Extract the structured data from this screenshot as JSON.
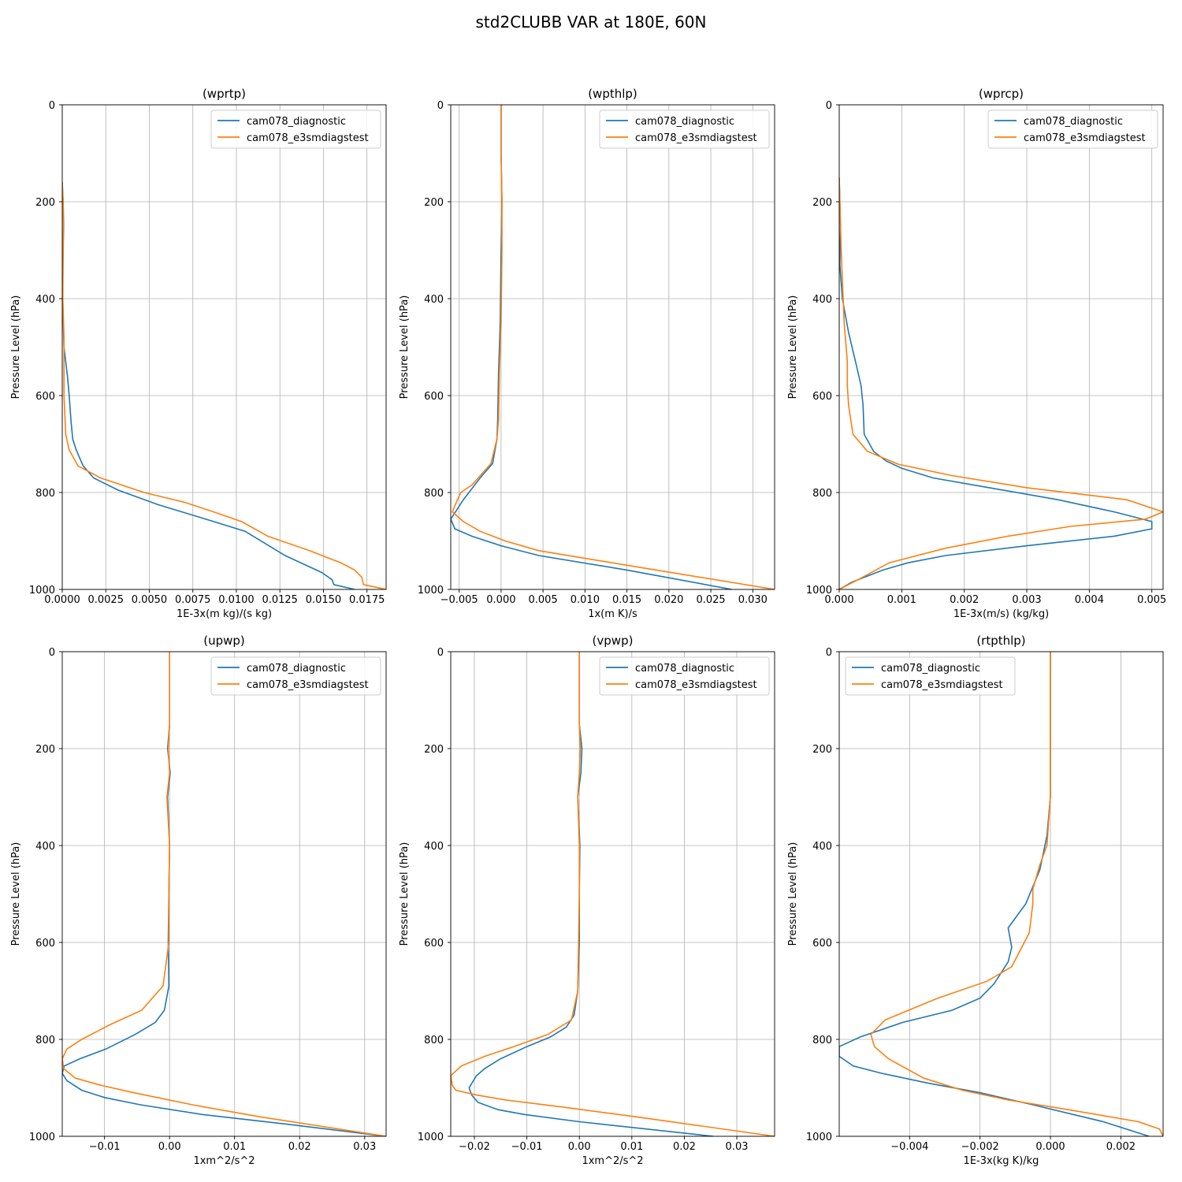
{
  "figure": {
    "title": "std2CLUBB VAR at 180E, 60N"
  },
  "colors": {
    "diagnostic": "#1f77b4",
    "e3smdiagstest": "#ff7f0e",
    "grid": "#b0b0b0"
  },
  "chart_data": [
    {
      "type": "line",
      "title": "(wprtp)",
      "xlabel": "1E-3x(m kg)/(s kg)",
      "ylabel": "Pressure Level (hPa)",
      "xlim": [
        0,
        0.0186
      ],
      "ylim": [
        1000,
        0
      ],
      "xticks": [
        0,
        0.0025,
        0.005,
        0.0075,
        0.01,
        0.0125,
        0.015,
        0.0175
      ],
      "xtick_labels": [
        "0.0000",
        "0.0025",
        "0.0050",
        "0.0075",
        "0.0100",
        "0.0125",
        "0.0150",
        "0.0175"
      ],
      "yticks": [
        0,
        200,
        400,
        600,
        800,
        1000
      ],
      "ytick_labels": [
        "0",
        "200",
        "400",
        "600",
        "800",
        "1000"
      ],
      "grid": true,
      "legend_position": "top-right",
      "series": [
        {
          "name": "cam078_diagnostic",
          "x": [
            0,
            5e-05,
            8e-05,
            5e-05,
            2e-05,
            0.0001,
            0.0003,
            0.0004,
            0.0005,
            0.0006,
            0.0008,
            0.0012,
            0.0018,
            0.0032,
            0.0055,
            0.0087,
            0.0105,
            0.0128,
            0.0149,
            0.0155,
            0.0156,
            0.0168
          ],
          "y": [
            160,
            200,
            250,
            300,
            400,
            500,
            560,
            600,
            650,
            690,
            712,
            745,
            770,
            795,
            825,
            860,
            880,
            930,
            965,
            980,
            990,
            1000
          ]
        },
        {
          "name": "cam078_e3smdiagstest",
          "x": [
            0,
            5e-05,
            7e-05,
            5e-05,
            3e-05,
            0.0001,
            0.0001,
            0.0002,
            0.0004,
            0.0009,
            0.0022,
            0.0047,
            0.007,
            0.0087,
            0.0103,
            0.0118,
            0.0142,
            0.016,
            0.0168,
            0.0172,
            0.0173,
            0.0186
          ],
          "y": [
            160,
            200,
            250,
            300,
            400,
            480,
            600,
            680,
            712,
            745,
            770,
            800,
            820,
            840,
            860,
            890,
            920,
            945,
            960,
            975,
            990,
            1000
          ]
        }
      ]
    },
    {
      "type": "line",
      "title": "(wpthlp)",
      "xlabel": "1x(m K)/s",
      "ylabel": "Pressure Level (hPa)",
      "xlim": [
        -0.006,
        0.0326
      ],
      "ylim": [
        1000,
        0
      ],
      "xticks": [
        -0.005,
        0,
        0.005,
        0.01,
        0.015,
        0.02,
        0.025,
        0.03
      ],
      "xtick_labels": [
        "−0.005",
        "0.000",
        "0.005",
        "0.010",
        "0.015",
        "0.020",
        "0.025",
        "0.030"
      ],
      "yticks": [
        0,
        200,
        400,
        600,
        800,
        1000
      ],
      "ytick_labels": [
        "0",
        "200",
        "400",
        "600",
        "800",
        "1000"
      ],
      "grid": true,
      "legend_position": "top-right",
      "series": [
        {
          "name": "cam078_diagnostic",
          "x": [
            0,
            0,
            0.0001,
            0,
            -0.0001,
            -0.0003,
            -0.0004,
            -0.0005,
            -0.001,
            -0.0025,
            -0.0045,
            -0.006,
            -0.0055,
            -0.0035,
            0,
            0.0045,
            0.015,
            0.0275
          ],
          "y": [
            0,
            100,
            200,
            300,
            450,
            550,
            650,
            690,
            740,
            770,
            815,
            855,
            875,
            890,
            910,
            930,
            960,
            1000
          ]
        },
        {
          "name": "cam078_e3smdiagstest",
          "x": [
            0,
            0,
            0.0001,
            0.0001,
            0,
            -0.0002,
            -0.0003,
            -0.0005,
            -0.0012,
            -0.0035,
            -0.0048,
            -0.0052,
            -0.0058,
            -0.0045,
            -0.0025,
            0.0005,
            0.0045,
            0.015,
            0.0326
          ],
          "y": [
            0,
            100,
            200,
            300,
            450,
            550,
            650,
            690,
            740,
            785,
            800,
            815,
            840,
            860,
            880,
            900,
            920,
            950,
            1000
          ]
        }
      ]
    },
    {
      "type": "line",
      "title": "(wprcp)",
      "xlabel": "1E-3x(m/s) (kg/kg)",
      "ylabel": "Pressure Level (hPa)",
      "xlim": [
        0,
        0.00518
      ],
      "ylim": [
        1000,
        0
      ],
      "xticks": [
        0,
        0.001,
        0.002,
        0.003,
        0.004,
        0.005
      ],
      "xtick_labels": [
        "0.000",
        "0.001",
        "0.002",
        "0.003",
        "0.004",
        "0.005"
      ],
      "yticks": [
        0,
        200,
        400,
        600,
        800,
        1000
      ],
      "ytick_labels": [
        "0",
        "200",
        "400",
        "600",
        "800",
        "1000"
      ],
      "grid": true,
      "legend_position": "top-right",
      "series": [
        {
          "name": "cam078_diagnostic",
          "x": [
            0,
            1e-05,
            2e-05,
            1e-05,
            5e-05,
            0.00015,
            0.00027,
            0.00035,
            0.00038,
            0.0004,
            0.00055,
            0.00075,
            0.001,
            0.0015,
            0.0024,
            0.0035,
            0.0044,
            0.005,
            0.005,
            0.0044,
            0.003,
            0.0017,
            0.0011,
            0.0007,
            0.0004,
            0.0002,
            0
          ],
          "y": [
            150,
            200,
            250,
            330,
            400,
            470,
            535,
            580,
            620,
            680,
            715,
            735,
            750,
            770,
            790,
            815,
            840,
            860,
            875,
            890,
            910,
            930,
            945,
            960,
            975,
            985,
            1000
          ]
        },
        {
          "name": "cam078_e3smdiagstest",
          "x": [
            0,
            1e-05,
            2e-05,
            4e-05,
            8e-05,
            0.00013,
            0.00013,
            0.00015,
            0.00022,
            0.00045,
            0.00095,
            0.0018,
            0.003,
            0.0046,
            0.00518,
            0.0049,
            0.0037,
            0.0027,
            0.0017,
            0.0008,
            0.0003,
            0
          ],
          "y": [
            150,
            200,
            250,
            330,
            450,
            530,
            580,
            620,
            680,
            715,
            742,
            765,
            790,
            815,
            840,
            855,
            870,
            890,
            915,
            945,
            980,
            1000
          ]
        }
      ]
    },
    {
      "type": "line",
      "title": "(upwp)",
      "xlabel": "1xm^2/s^2",
      "ylabel": "Pressure Level (hPa)",
      "xlim": [
        -0.0165,
        0.0333
      ],
      "ylim": [
        1000,
        0
      ],
      "xticks": [
        -0.01,
        0,
        0.01,
        0.02,
        0.03
      ],
      "xtick_labels": [
        "−0.01",
        "0.00",
        "0.01",
        "0.02",
        "0.03"
      ],
      "yticks": [
        0,
        200,
        400,
        600,
        800,
        1000
      ],
      "ytick_labels": [
        "0",
        "200",
        "400",
        "600",
        "800",
        "1000"
      ],
      "grid": true,
      "legend_position": "top-right",
      "series": [
        {
          "name": "cam078_diagnostic",
          "x": [
            0,
            0,
            -0.0003,
            0.0001,
            -0.0003,
            0,
            -0.0001,
            -0.0002,
            -0.0001,
            -0.0008,
            -0.0022,
            -0.0053,
            -0.0098,
            -0.0138,
            -0.0162,
            -0.0165,
            -0.0158,
            -0.0135,
            -0.01,
            -0.0045,
            0.005,
            0.018,
            0.0333
          ],
          "y": [
            0,
            150,
            200,
            250,
            300,
            400,
            500,
            600,
            690,
            740,
            765,
            790,
            820,
            840,
            855,
            870,
            885,
            905,
            920,
            935,
            955,
            975,
            1000
          ]
        },
        {
          "name": "cam078_e3smdiagstest",
          "x": [
            0,
            0,
            -0.0002,
            0,
            -0.0004,
            0,
            -0.0001,
            -0.0001,
            -0.001,
            -0.0043,
            -0.0092,
            -0.0135,
            -0.0158,
            -0.0165,
            -0.0163,
            -0.0145,
            -0.0105,
            -0.0055,
            0.0035,
            0.014,
            0.0333
          ],
          "y": [
            0,
            150,
            200,
            250,
            300,
            400,
            500,
            600,
            690,
            740,
            770,
            800,
            820,
            840,
            860,
            880,
            895,
            910,
            935,
            960,
            1000
          ]
        }
      ]
    },
    {
      "type": "line",
      "title": "(vpwp)",
      "xlabel": "1xm^2/s^2",
      "ylabel": "Pressure Level (hPa)",
      "xlim": [
        -0.0245,
        0.0372
      ],
      "ylim": [
        1000,
        0
      ],
      "xticks": [
        -0.02,
        -0.01,
        0,
        0.01,
        0.02,
        0.03
      ],
      "xtick_labels": [
        "−0.02",
        "−0.01",
        "0.00",
        "0.01",
        "0.02",
        "0.03"
      ],
      "yticks": [
        0,
        200,
        400,
        600,
        800,
        1000
      ],
      "ytick_labels": [
        "0",
        "200",
        "400",
        "600",
        "800",
        "1000"
      ],
      "grid": true,
      "legend_position": "top-right",
      "series": [
        {
          "name": "cam078_diagnostic",
          "x": [
            0,
            0,
            0.0005,
            0.0003,
            -0.0003,
            0.0001,
            0,
            0,
            -0.0003,
            -0.001,
            -0.0025,
            -0.0055,
            -0.01,
            -0.015,
            -0.018,
            -0.0196,
            -0.021,
            -0.0205,
            -0.0193,
            -0.0155,
            -0.0105,
            0,
            0.0255
          ],
          "y": [
            0,
            150,
            200,
            250,
            300,
            400,
            500,
            600,
            700,
            750,
            775,
            795,
            815,
            840,
            860,
            875,
            900,
            915,
            930,
            945,
            955,
            970,
            1000
          ]
        },
        {
          "name": "cam078_e3smdiagstest",
          "x": [
            0,
            0,
            0.0002,
            0,
            -0.0003,
            0,
            0,
            -0.0003,
            -0.0015,
            -0.006,
            -0.0125,
            -0.018,
            -0.0225,
            -0.0245,
            -0.0242,
            -0.0235,
            -0.0195,
            -0.014,
            -0.003,
            0.011,
            0.0372
          ],
          "y": [
            0,
            150,
            200,
            250,
            300,
            400,
            500,
            700,
            760,
            790,
            815,
            835,
            855,
            875,
            895,
            905,
            915,
            925,
            940,
            960,
            1000
          ]
        }
      ]
    },
    {
      "type": "line",
      "title": "(rtpthlp)",
      "xlabel": "1E-3x(kg K)/kg",
      "ylabel": "Pressure Level (hPa)",
      "xlim": [
        -0.006,
        0.0032
      ],
      "ylim": [
        1000,
        0
      ],
      "xticks": [
        -0.004,
        -0.002,
        0,
        0.002
      ],
      "xtick_labels": [
        "−0.004",
        "−0.002",
        "0.000",
        "0.002"
      ],
      "yticks": [
        0,
        200,
        400,
        600,
        800,
        1000
      ],
      "ytick_labels": [
        "0",
        "200",
        "400",
        "600",
        "800",
        "1000"
      ],
      "grid": true,
      "legend_position": "top-left",
      "series": [
        {
          "name": "cam078_diagnostic",
          "x": [
            0,
            0,
            0,
            -0.0001,
            -0.0003,
            -0.0007,
            -0.0012,
            -0.0011,
            -0.0012,
            -0.0016,
            -0.002,
            -0.0028,
            -0.0042,
            -0.0054,
            -0.006,
            -0.006,
            -0.0056,
            -0.0048,
            -0.0035,
            -0.002,
            -0.0005,
            0.0015,
            0.0028
          ],
          "y": [
            0,
            200,
            300,
            380,
            450,
            520,
            570,
            610,
            640,
            685,
            715,
            740,
            765,
            795,
            815,
            835,
            855,
            870,
            890,
            910,
            935,
            970,
            1000
          ]
        },
        {
          "name": "cam078_e3smdiagstest",
          "x": [
            0,
            0,
            0,
            -0.0001,
            -0.0003,
            -0.0005,
            -0.0005,
            -0.0006,
            -0.0011,
            -0.0018,
            -0.0032,
            -0.0047,
            -0.0051,
            -0.005,
            -0.0046,
            -0.0041,
            -0.0036,
            -0.0025,
            -0.0012,
            0.0005,
            0.0025,
            0.0031,
            0.0032
          ],
          "y": [
            0,
            200,
            300,
            400,
            440,
            490,
            520,
            580,
            650,
            680,
            715,
            760,
            790,
            815,
            840,
            860,
            880,
            905,
            925,
            945,
            970,
            985,
            1000
          ]
        }
      ]
    }
  ]
}
